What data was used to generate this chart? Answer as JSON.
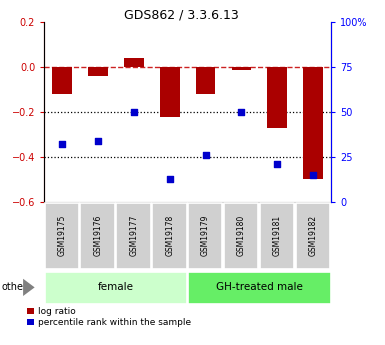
{
  "title": "GDS862 / 3.3.6.13",
  "samples": [
    "GSM19175",
    "GSM19176",
    "GSM19177",
    "GSM19178",
    "GSM19179",
    "GSM19180",
    "GSM19181",
    "GSM19182"
  ],
  "log_ratio": [
    -0.12,
    -0.04,
    0.04,
    -0.22,
    -0.12,
    -0.01,
    -0.27,
    -0.5
  ],
  "percentile_rank": [
    32,
    34,
    50,
    13,
    26,
    50,
    21,
    15
  ],
  "groups": [
    {
      "label": "female",
      "start": 0,
      "end": 4,
      "color": "#ccffcc"
    },
    {
      "label": "GH-treated male",
      "start": 4,
      "end": 8,
      "color": "#66ee66"
    }
  ],
  "ylim_left": [
    -0.6,
    0.2
  ],
  "ylim_right": [
    0,
    100
  ],
  "yticks_left": [
    -0.6,
    -0.4,
    -0.2,
    0.0,
    0.2
  ],
  "yticks_right": [
    0,
    25,
    50,
    75,
    100
  ],
  "ytick_labels_right": [
    "0",
    "25",
    "50",
    "75",
    "100%"
  ],
  "bar_color": "#aa0000",
  "dot_color": "#0000cc",
  "dotted_lines": [
    -0.2,
    -0.4
  ],
  "background_color": "#ffffff"
}
